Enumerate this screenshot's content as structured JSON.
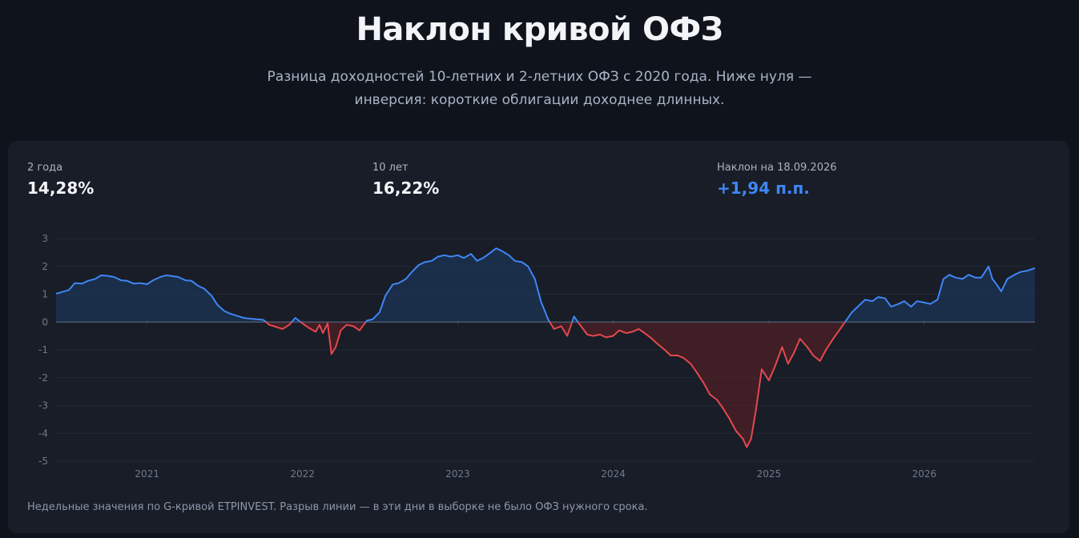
{
  "header": {
    "title": "Наклон кривой ОФЗ",
    "subtitle_line1": "Разница доходностей 10-летних и 2-летних ОФЗ с 2020 года. Ниже нуля —",
    "subtitle_line2": "инверсия: короткие облигации доходнее длинных."
  },
  "stats": [
    {
      "label": "2 года",
      "value": "14,28%"
    },
    {
      "label": "10 лет",
      "value": "16,22%"
    },
    {
      "label": "Наклон на 18.09.2026",
      "value": "+1,94 п.п."
    }
  ],
  "footnote": "Недельные значения по G-кривой ETPINVEST. Разрыв линии — в эти дни в выборке не было ОФЗ нужного срока.",
  "colors": {
    "positive": "#3f86f5",
    "negative": "#e5484d",
    "background": "#0f131b",
    "card": "#181d27"
  },
  "chart_data": {
    "type": "area",
    "title": "",
    "xlabel": "",
    "ylabel": "",
    "ylim": [
      -5,
      3
    ],
    "yticks": [
      "3",
      "2",
      "1",
      "0",
      "-1",
      "-2",
      "-3",
      "-4",
      "-5"
    ],
    "xlim": [
      "2020-06-01",
      "2026-09-18"
    ],
    "xticks": [
      {
        "label": "2021",
        "date": "2021-01-01"
      },
      {
        "label": "2022",
        "date": "2022-01-01"
      },
      {
        "label": "2023",
        "date": "2023-01-01"
      },
      {
        "label": "2024",
        "date": "2024-01-01"
      },
      {
        "label": "2025",
        "date": "2025-01-01"
      },
      {
        "label": "2026",
        "date": "2026-01-01"
      }
    ],
    "grid": true,
    "series": [
      {
        "points": [
          [
            "2020-06-01",
            1.02
          ],
          [
            "2020-07-01",
            1.15
          ],
          [
            "2020-07-15",
            1.4
          ],
          [
            "2020-08-01",
            1.38
          ],
          [
            "2020-08-15",
            1.48
          ],
          [
            "2020-09-01",
            1.55
          ],
          [
            "2020-09-15",
            1.68
          ],
          [
            "2020-10-01",
            1.66
          ],
          [
            "2020-10-15",
            1.62
          ],
          [
            "2020-11-01",
            1.5
          ],
          [
            "2020-11-15",
            1.48
          ],
          [
            "2020-12-01",
            1.38
          ],
          [
            "2020-12-15",
            1.4
          ],
          [
            "2021-01-01",
            1.36
          ],
          [
            "2021-01-15",
            1.5
          ],
          [
            "2021-02-01",
            1.62
          ],
          [
            "2021-02-15",
            1.68
          ],
          [
            "2021-03-01",
            1.65
          ],
          [
            "2021-03-15",
            1.62
          ],
          [
            "2021-04-01",
            1.5
          ],
          [
            "2021-04-15",
            1.48
          ],
          [
            "2021-05-01",
            1.3
          ],
          [
            "2021-05-15",
            1.2
          ],
          [
            "2021-06-01",
            0.95
          ],
          [
            "2021-06-15",
            0.62
          ],
          [
            "2021-07-01",
            0.4
          ],
          [
            "2021-07-15",
            0.3
          ],
          [
            "2021-08-01",
            0.22
          ],
          [
            "2021-08-15",
            0.15
          ],
          [
            "2021-09-01",
            0.12
          ],
          [
            "2021-09-15",
            0.1
          ],
          [
            "2021-10-01",
            0.08
          ],
          [
            "2021-10-15",
            -0.1
          ],
          [
            "2021-11-01",
            -0.18
          ],
          [
            "2021-11-15",
            -0.25
          ],
          [
            "2021-12-01",
            -0.1
          ],
          [
            "2021-12-15",
            0.15
          ],
          [
            "2022-01-01",
            -0.05
          ],
          [
            "2022-01-15",
            -0.2
          ],
          [
            "2022-02-01",
            -0.35
          ],
          [
            "2022-02-10",
            -0.1
          ],
          [
            "2022-02-18",
            -0.4
          ],
          [
            "2022-03-01",
            -0.05
          ],
          [
            "2022-03-10",
            -1.15
          ],
          [
            "2022-03-20",
            -0.9
          ],
          [
            "2022-04-01",
            -0.3
          ],
          [
            "2022-04-15",
            -0.1
          ],
          [
            "2022-05-01",
            -0.15
          ],
          [
            "2022-05-15",
            -0.3
          ],
          [
            "2022-06-01",
            0.05
          ],
          [
            "2022-06-15",
            0.1
          ],
          [
            "2022-07-01",
            0.35
          ],
          [
            "2022-07-15",
            0.95
          ],
          [
            "2022-08-01",
            1.35
          ],
          [
            "2022-08-15",
            1.4
          ],
          [
            "2022-09-01",
            1.55
          ],
          [
            "2022-09-15",
            1.8
          ],
          [
            "2022-10-01",
            2.05
          ],
          [
            "2022-10-15",
            2.15
          ],
          [
            "2022-11-01",
            2.2
          ],
          [
            "2022-11-15",
            2.35
          ],
          [
            "2022-12-01",
            2.4
          ],
          [
            "2022-12-15",
            2.35
          ],
          [
            "2023-01-01",
            2.4
          ],
          [
            "2023-01-15",
            2.3
          ],
          [
            "2023-02-01",
            2.45
          ],
          [
            "2023-02-15",
            2.2
          ],
          [
            "2023-03-01",
            2.3
          ],
          [
            "2023-03-15",
            2.45
          ],
          [
            "2023-04-01",
            2.65
          ],
          [
            "2023-04-15",
            2.55
          ],
          [
            "2023-05-01",
            2.4
          ],
          [
            "2023-05-15",
            2.2
          ],
          [
            "2023-06-01",
            2.15
          ],
          [
            "2023-06-15",
            2.0
          ],
          [
            "2023-07-01",
            1.55
          ],
          [
            "2023-07-15",
            0.75
          ],
          [
            "2023-08-01",
            0.1
          ],
          [
            "2023-08-15",
            -0.25
          ],
          [
            "2023-09-01",
            -0.15
          ],
          [
            "2023-09-15",
            -0.5
          ],
          [
            "2023-10-01",
            0.2
          ],
          [
            "2023-10-15",
            -0.1
          ],
          [
            "2023-11-01",
            -0.45
          ],
          [
            "2023-11-15",
            -0.5
          ],
          [
            "2023-12-01",
            -0.45
          ],
          [
            "2023-12-15",
            -0.55
          ],
          [
            "2024-01-01",
            -0.5
          ],
          [
            "2024-01-15",
            -0.3
          ],
          [
            "2024-02-01",
            -0.4
          ],
          [
            "2024-02-15",
            -0.35
          ],
          [
            "2024-03-01",
            -0.25
          ],
          [
            "2024-03-15",
            -0.4
          ],
          [
            "2024-04-01",
            -0.6
          ],
          [
            "2024-04-15",
            -0.8
          ],
          [
            "2024-05-01",
            -1.0
          ],
          [
            "2024-05-15",
            -1.2
          ],
          [
            "2024-06-01",
            -1.2
          ],
          [
            "2024-06-15",
            -1.3
          ],
          [
            "2024-07-01",
            -1.5
          ],
          [
            "2024-07-15",
            -1.8
          ],
          [
            "2024-08-01",
            -2.2
          ],
          [
            "2024-08-15",
            -2.6
          ],
          [
            "2024-09-01",
            -2.8
          ],
          [
            "2024-09-15",
            -3.1
          ],
          [
            "2024-10-01",
            -3.5
          ],
          [
            "2024-10-15",
            -3.9
          ],
          [
            "2024-11-01",
            -4.2
          ],
          [
            "2024-11-10",
            -4.5
          ],
          [
            "2024-11-20",
            -4.2
          ],
          [
            "2024-12-01",
            -3.2
          ],
          [
            "2024-12-15",
            -1.7
          ],
          [
            "2025-01-01",
            -2.1
          ],
          [
            "2025-01-15",
            -1.6
          ],
          [
            "2025-02-01",
            -0.9
          ],
          [
            "2025-02-15",
            -1.5
          ],
          [
            "2025-03-01",
            -1.1
          ],
          [
            "2025-03-15",
            -0.6
          ],
          [
            "2025-04-01",
            -0.9
          ],
          [
            "2025-04-15",
            -1.2
          ],
          [
            "2025-05-01",
            -1.4
          ],
          [
            "2025-05-15",
            -1.0
          ],
          [
            "2025-06-01",
            -0.6
          ],
          [
            "2025-06-15",
            -0.3
          ],
          [
            "2025-07-01",
            0.05
          ],
          [
            "2025-07-15",
            0.35
          ],
          [
            "2025-08-01",
            0.6
          ],
          [
            "2025-08-15",
            0.8
          ],
          [
            "2025-09-01",
            0.75
          ],
          [
            "2025-09-15",
            0.9
          ],
          [
            "2025-10-01",
            0.85
          ],
          [
            "2025-10-15",
            0.55
          ],
          [
            "2025-11-01",
            0.65
          ],
          [
            "2025-11-15",
            0.75
          ],
          [
            "2025-12-01",
            0.55
          ],
          [
            "2025-12-15",
            0.75
          ],
          [
            "2026-01-01",
            0.7
          ],
          [
            "2026-01-15",
            0.65
          ],
          [
            "2026-02-01",
            0.8
          ],
          [
            "2026-02-15",
            1.55
          ],
          [
            "2026-03-01",
            1.7
          ],
          [
            "2026-03-15",
            1.6
          ],
          [
            "2026-04-01",
            1.55
          ],
          [
            "2026-04-15",
            1.7
          ],
          [
            "2026-05-01",
            1.6
          ],
          [
            "2026-05-15",
            1.6
          ],
          [
            "2026-06-01",
            2.0
          ],
          [
            "2026-06-10",
            1.55
          ],
          [
            "2026-06-20",
            1.35
          ],
          [
            "2026-07-01",
            1.1
          ],
          [
            "2026-07-15",
            1.55
          ],
          [
            "2026-08-01",
            1.7
          ],
          [
            "2026-08-15",
            1.8
          ],
          [
            "2026-09-01",
            1.85
          ],
          [
            "2026-09-18",
            1.94
          ]
        ]
      }
    ]
  }
}
